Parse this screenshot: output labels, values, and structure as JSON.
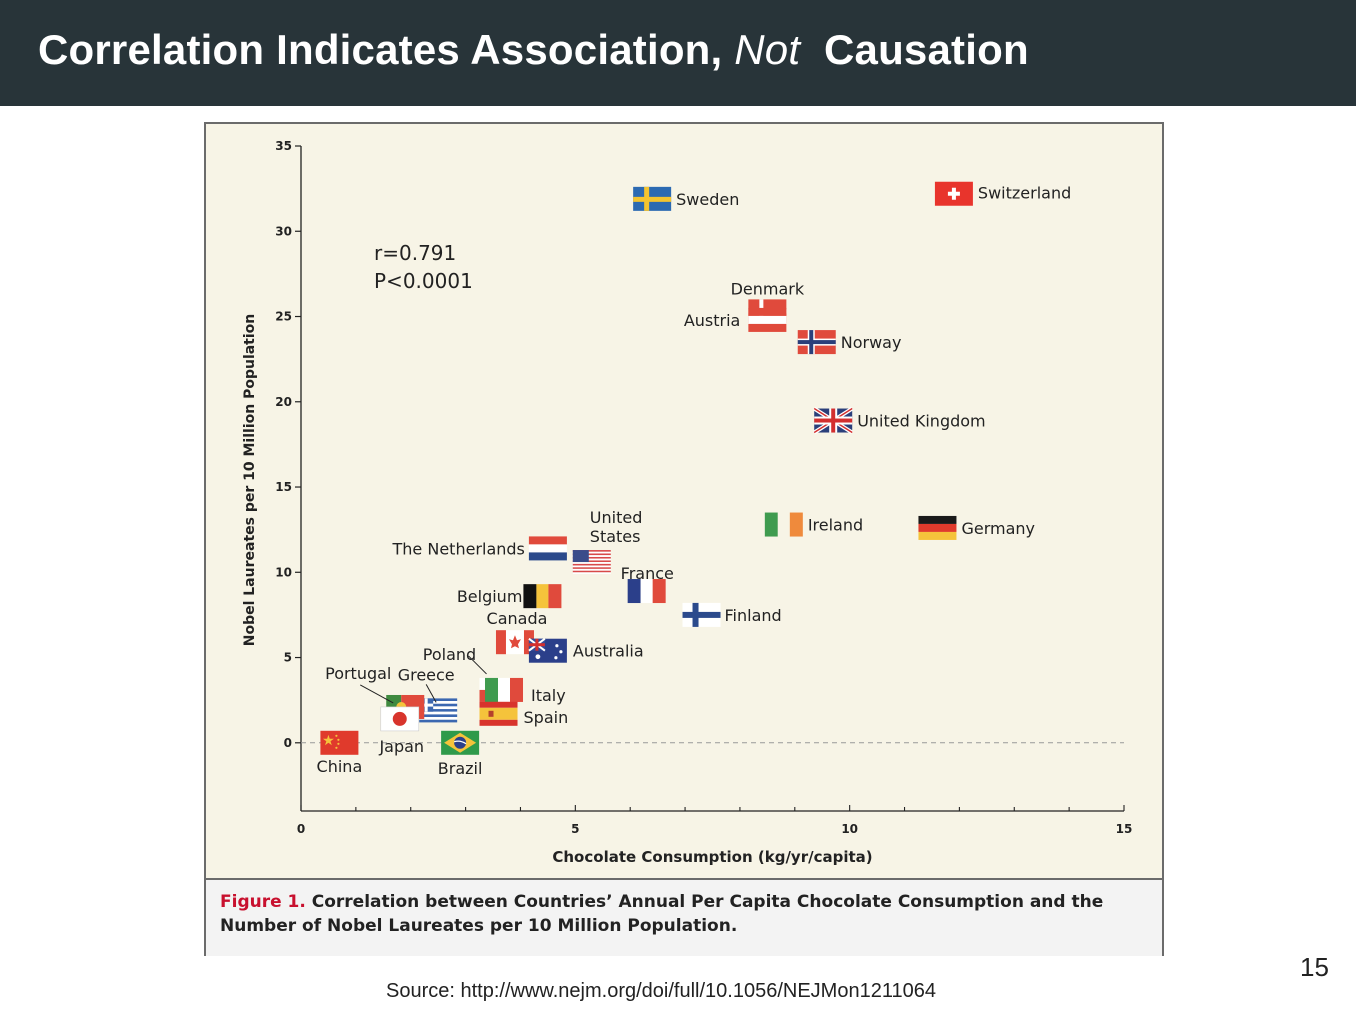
{
  "slide": {
    "title_part1": "Correlation Indicates Association, ",
    "title_not": "Not",
    "title_part2": "  Causation",
    "source": "Source: http://www.nejm.org/doi/full/10.1056/NEJMon1211064",
    "page_number": "15"
  },
  "figure": {
    "caption_label": "Figure 1.",
    "caption_text": " Correlation between Countries’ Annual Per Capita Chocolate Consumption and the Number of Nobel Laureates per 10 Million Population.",
    "stat_r": "r=0.791",
    "stat_p": "P<0.0001"
  },
  "colors": {
    "header_bg": "#283439",
    "plot_bg": "#f7f4e6",
    "caption_label": "#c8102e"
  },
  "chart_data": {
    "type": "scatter",
    "xlabel": "Chocolate Consumption (kg/yr/capita)",
    "ylabel": "Nobel Laureates per 10 Million Population",
    "xlim": [
      0,
      15
    ],
    "ylim": [
      -4,
      35
    ],
    "xticks": [
      0,
      5,
      10,
      15
    ],
    "yticks": [
      0,
      5,
      10,
      15,
      20,
      25,
      30,
      35
    ],
    "grid": false,
    "reference_line_y": 0,
    "points": [
      {
        "label": "Switzerland",
        "x": 11.9,
        "y": 32.2,
        "flag": "switzerland"
      },
      {
        "label": "Sweden",
        "x": 6.4,
        "y": 31.9,
        "flag": "sweden"
      },
      {
        "label": "Denmark",
        "x": 8.5,
        "y": 25.3,
        "flag": "denmark"
      },
      {
        "label": "Austria",
        "x": 8.5,
        "y": 24.8,
        "flag": "austria"
      },
      {
        "label": "Norway",
        "x": 9.4,
        "y": 23.5,
        "flag": "norway"
      },
      {
        "label": "United Kingdom",
        "x": 9.7,
        "y": 18.9,
        "flag": "uk"
      },
      {
        "label": "Ireland",
        "x": 8.8,
        "y": 12.8,
        "flag": "ireland"
      },
      {
        "label": "Germany",
        "x": 11.6,
        "y": 12.6,
        "flag": "germany"
      },
      {
        "label": "The Netherlands",
        "x": 4.5,
        "y": 11.4,
        "flag": "netherlands"
      },
      {
        "label": "United States",
        "x": 5.3,
        "y": 10.6,
        "flag": "usa"
      },
      {
        "label": "France",
        "x": 6.3,
        "y": 8.9,
        "flag": "france"
      },
      {
        "label": "Finland",
        "x": 7.3,
        "y": 7.5,
        "flag": "finland"
      },
      {
        "label": "Belgium",
        "x": 4.4,
        "y": 8.6,
        "flag": "belgium"
      },
      {
        "label": "Canada",
        "x": 3.9,
        "y": 5.9,
        "flag": "canada"
      },
      {
        "label": "Australia",
        "x": 4.5,
        "y": 5.4,
        "flag": "australia"
      },
      {
        "label": "Poland",
        "x": 3.6,
        "y": 3.1,
        "flag": "poland"
      },
      {
        "label": "Italy",
        "x": 3.7,
        "y": 3.1,
        "flag": "italy"
      },
      {
        "label": "Greece",
        "x": 2.5,
        "y": 1.9,
        "flag": "greece"
      },
      {
        "label": "Portugal",
        "x": 1.9,
        "y": 2.1,
        "flag": "portugal"
      },
      {
        "label": "Spain",
        "x": 3.6,
        "y": 1.7,
        "flag": "spain"
      },
      {
        "label": "Japan",
        "x": 1.8,
        "y": 1.4,
        "flag": "japan"
      },
      {
        "label": "China",
        "x": 0.7,
        "y": 0.0,
        "flag": "china"
      },
      {
        "label": "Brazil",
        "x": 2.9,
        "y": 0.0,
        "flag": "brazil"
      }
    ]
  }
}
